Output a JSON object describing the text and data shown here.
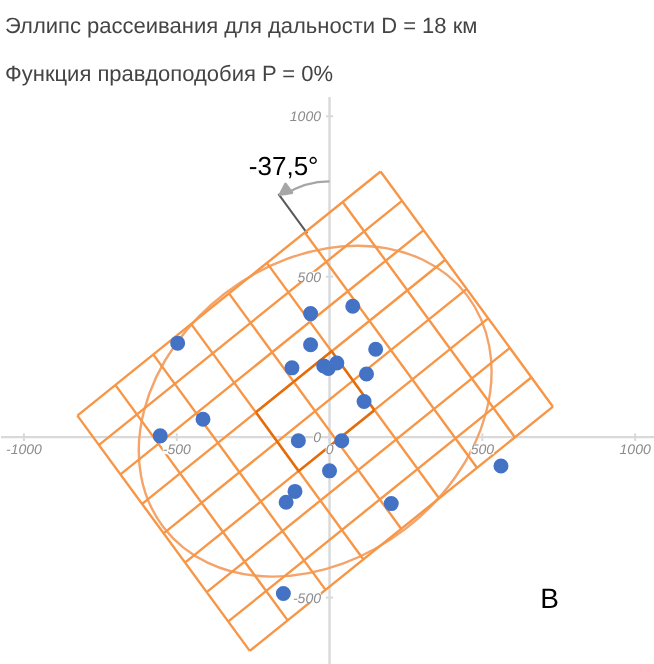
{
  "chart_data": {
    "type": "scatter",
    "title": "Эллипс рассеивания для дальности D = 18 км",
    "subtitle": "Функция правдоподобия P = 0%",
    "xlim": [
      -1075,
      1065
    ],
    "ylim": [
      -710,
      1060
    ],
    "xticks": [
      -1000,
      -500,
      0,
      500,
      1000
    ],
    "yticks": [
      -500,
      0,
      500,
      1000
    ],
    "annotations": [
      "-37,5°",
      "В"
    ],
    "series": [
      {
        "type": "line",
        "color": "#f79646",
        "x": [
          -261,
          -825,
          null,
          -137,
          -701,
          null,
          -13,
          -577,
          null,
          111,
          -453,
          null,
          235,
          -329,
          null,
          359,
          -205,
          null,
          483,
          -81,
          null,
          607,
          43,
          null,
          731,
          167,
          null,
          167,
          -825,
          null,
          238,
          -754,
          null,
          308,
          -684,
          null,
          379,
          -613,
          null,
          449,
          -543,
          null,
          519,
          -473,
          null,
          590,
          -402,
          null,
          660,
          -332,
          null,
          731,
          -261
        ],
        "values": [
          -666,
          67,
          null,
          -571,
          163,
          null,
          -476,
          258,
          null,
          -381,
          353,
          null,
          -286,
          448,
          null,
          -191,
          543,
          null,
          -96,
          638,
          null,
          -1,
          733,
          null,
          95,
          828,
          null,
          828,
          67,
          null,
          737,
          -24,
          null,
          645,
          -116,
          null,
          553,
          -208,
          null,
          462,
          -300,
          null,
          370,
          -391,
          null,
          278,
          -483,
          null,
          186,
          -575,
          null,
          95,
          -666
        ]
      },
      {
        "type": "line",
        "color": "#e46c0a",
        "x": [
          -241,
          7,
          147
        ],
        "values": [
          78,
          268,
          84
        ]
      },
      {
        "type": "line",
        "color": "#e46c0a",
        "x": [
          -241,
          -101,
          147
        ],
        "values": [
          78,
          -106,
          84
        ]
      },
      {
        "color": "#4472c4",
        "marker": "circle",
        "x": [
          -497,
          -62,
          76,
          -62,
          151,
          -123,
          -19,
          -4,
          24,
          121,
          113,
          -414,
          -554,
          -102,
          40,
          0,
          561,
          -113,
          -142,
          202,
          -151
        ],
        "values": [
          293,
          385,
          408,
          288,
          274,
          216,
          222,
          214,
          231,
          197,
          111,
          56,
          4,
          -11,
          -11,
          -105,
          -90,
          -169,
          -203,
          -207,
          -487
        ]
      }
    ]
  }
}
